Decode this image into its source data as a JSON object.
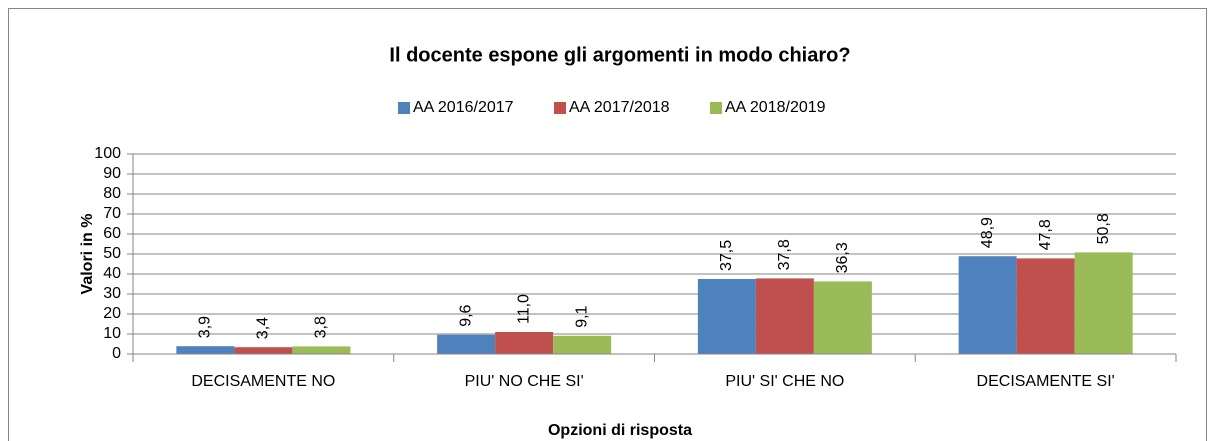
{
  "chart_data": {
    "type": "bar",
    "title": "Il docente espone gli argomenti in modo chiaro?",
    "x_label": "Opzioni di risposta",
    "y_label": "Valori in %",
    "categories": [
      "DECISAMENTE NO",
      "PIU' NO CHE SI'",
      "PIU' SI' CHE NO",
      "DECISAMENTE SI'"
    ],
    "series": [
      {
        "name": "AA 2016/2017",
        "color": "#4f81bd",
        "values": [
          3.9,
          9.6,
          37.5,
          48.9
        ],
        "value_labels": [
          "3,9",
          "9,6",
          "37,5",
          "48,9"
        ]
      },
      {
        "name": "AA 2017/2018",
        "color": "#c0504d",
        "values": [
          3.4,
          11.0,
          37.8,
          47.8
        ],
        "value_labels": [
          "3,4",
          "11,0",
          "37,8",
          "47,8"
        ]
      },
      {
        "name": "AA 2018/2019",
        "color": "#9bbb59",
        "values": [
          3.8,
          9.1,
          36.3,
          50.8
        ],
        "value_labels": [
          "3,8",
          "9,1",
          "36,3",
          "50,8"
        ]
      }
    ],
    "ylim": [
      0,
      100
    ],
    "yticks": [
      0,
      10,
      20,
      30,
      40,
      50,
      60,
      70,
      80,
      90,
      100
    ],
    "grid": true,
    "legend": "top"
  }
}
